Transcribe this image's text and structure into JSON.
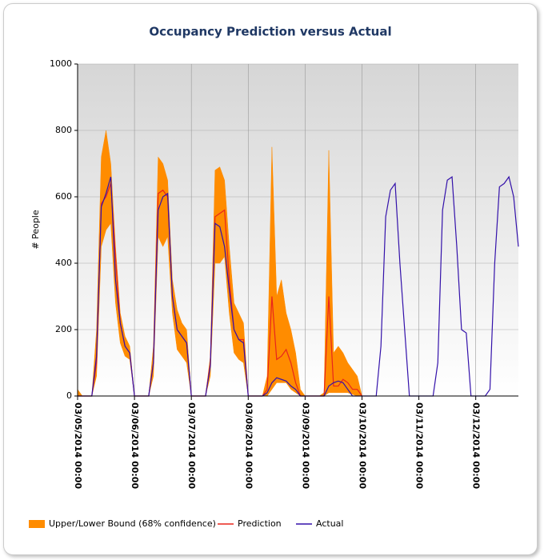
{
  "chart_data": {
    "type": "line",
    "title": "Occupancy Prediction versus Actual",
    "y_label": "# People",
    "x": [
      "03/05/2014 00:00",
      "03/05/2014 02:00",
      "03/05/2014 04:00",
      "03/05/2014 06:00",
      "03/05/2014 08:00",
      "03/05/2014 10:00",
      "03/05/2014 12:00",
      "03/05/2014 14:00",
      "03/05/2014 16:00",
      "03/05/2014 18:00",
      "03/05/2014 20:00",
      "03/05/2014 22:00",
      "03/06/2014 00:00",
      "03/06/2014 02:00",
      "03/06/2014 04:00",
      "03/06/2014 06:00",
      "03/06/2014 08:00",
      "03/06/2014 10:00",
      "03/06/2014 12:00",
      "03/06/2014 14:00",
      "03/06/2014 16:00",
      "03/06/2014 18:00",
      "03/06/2014 20:00",
      "03/06/2014 22:00",
      "03/07/2014 00:00",
      "03/07/2014 02:00",
      "03/07/2014 04:00",
      "03/07/2014 06:00",
      "03/07/2014 08:00",
      "03/07/2014 10:00",
      "03/07/2014 12:00",
      "03/07/2014 14:00",
      "03/07/2014 16:00",
      "03/07/2014 18:00",
      "03/07/2014 20:00",
      "03/07/2014 22:00",
      "03/08/2014 00:00",
      "03/08/2014 02:00",
      "03/08/2014 04:00",
      "03/08/2014 06:00",
      "03/08/2014 08:00",
      "03/08/2014 10:00",
      "03/08/2014 12:00",
      "03/08/2014 14:00",
      "03/08/2014 16:00",
      "03/08/2014 18:00",
      "03/08/2014 20:00",
      "03/08/2014 22:00",
      "03/09/2014 00:00",
      "03/09/2014 02:00",
      "03/09/2014 04:00",
      "03/09/2014 06:00",
      "03/09/2014 08:00",
      "03/09/2014 10:00",
      "03/09/2014 12:00",
      "03/09/2014 14:00",
      "03/09/2014 16:00",
      "03/09/2014 18:00",
      "03/09/2014 20:00",
      "03/09/2014 22:00",
      "03/10/2014 00:00",
      "03/10/2014 02:00",
      "03/10/2014 04:00",
      "03/10/2014 06:00",
      "03/10/2014 08:00",
      "03/10/2014 10:00",
      "03/10/2014 12:00",
      "03/10/2014 14:00",
      "03/10/2014 16:00",
      "03/10/2014 18:00",
      "03/10/2014 20:00",
      "03/10/2014 22:00",
      "03/11/2014 00:00",
      "03/11/2014 02:00",
      "03/11/2014 04:00",
      "03/11/2014 06:00",
      "03/11/2014 08:00",
      "03/11/2014 10:00",
      "03/11/2014 12:00",
      "03/11/2014 14:00",
      "03/11/2014 16:00",
      "03/11/2014 18:00",
      "03/11/2014 20:00",
      "03/11/2014 22:00",
      "03/12/2014 00:00",
      "03/12/2014 02:00",
      "03/12/2014 04:00",
      "03/12/2014 06:00",
      "03/12/2014 08:00",
      "03/12/2014 10:00",
      "03/12/2014 12:00",
      "03/12/2014 14:00",
      "03/12/2014 16:00",
      "03/12/2014 18:00"
    ],
    "xlim": [
      "03/05/2014 00:00",
      "03/12/2014 18:00"
    ],
    "xticks": [
      "03/05/2014 00:00",
      "03/06/2014 00:00",
      "03/07/2014 00:00",
      "03/08/2014 00:00",
      "03/09/2014 00:00",
      "03/10/2014 00:00",
      "03/11/2014 00:00",
      "03/12/2014 00:00"
    ],
    "ylim": [
      0,
      1000
    ],
    "yticks": [
      0,
      200,
      400,
      600,
      800,
      1000
    ],
    "grid": true,
    "series": [
      {
        "name": "Upper/Lower Bound (68% confidence)",
        "color": "#ff8c00",
        "upper": [
          20,
          0,
          0,
          0,
          200,
          720,
          800,
          700,
          450,
          250,
          180,
          150,
          0,
          0,
          0,
          0,
          150,
          720,
          700,
          650,
          350,
          260,
          220,
          200,
          0,
          0,
          0,
          0,
          120,
          680,
          690,
          650,
          450,
          280,
          250,
          220,
          0,
          0,
          0,
          0,
          60,
          750,
          300,
          350,
          250,
          200,
          130,
          20,
          0,
          0,
          0,
          0,
          10,
          740,
          130,
          150,
          130,
          100,
          80,
          60,
          0,
          null,
          null,
          null,
          null,
          null,
          null,
          null,
          null,
          null,
          null,
          null,
          null,
          null,
          null,
          null,
          null,
          null,
          null,
          null,
          null,
          null,
          null,
          null,
          null,
          null,
          null,
          null,
          null,
          null,
          null,
          null,
          null,
          null
        ],
        "lower": [
          0,
          0,
          0,
          0,
          60,
          450,
          500,
          520,
          280,
          160,
          120,
          110,
          0,
          0,
          0,
          0,
          60,
          480,
          450,
          480,
          250,
          140,
          120,
          100,
          0,
          0,
          0,
          0,
          60,
          400,
          400,
          420,
          250,
          130,
          110,
          100,
          0,
          0,
          0,
          0,
          0,
          20,
          40,
          40,
          40,
          20,
          10,
          0,
          0,
          0,
          0,
          0,
          0,
          10,
          10,
          10,
          10,
          10,
          5,
          0,
          0,
          null,
          null,
          null,
          null,
          null,
          null,
          null,
          null,
          null,
          null,
          null,
          null,
          null,
          null,
          null,
          null,
          null,
          null,
          null,
          null,
          null,
          null,
          null,
          null,
          null,
          null,
          null,
          null,
          null,
          null,
          null,
          null,
          null
        ]
      },
      {
        "name": "Prediction",
        "color": "#e8251c",
        "values": [
          0,
          0,
          0,
          0,
          100,
          580,
          600,
          640,
          420,
          220,
          150,
          130,
          0,
          0,
          0,
          0,
          100,
          610,
          620,
          600,
          300,
          200,
          180,
          160,
          0,
          0,
          0,
          0,
          100,
          540,
          550,
          560,
          350,
          200,
          170,
          170,
          0,
          0,
          0,
          0,
          20,
          300,
          110,
          120,
          140,
          100,
          40,
          0,
          0,
          0,
          0,
          0,
          0,
          300,
          30,
          30,
          50,
          40,
          20,
          20,
          0,
          null,
          null,
          null,
          null,
          null,
          null,
          null,
          null,
          null,
          null,
          null,
          null,
          null,
          null,
          null,
          null,
          null,
          null,
          null,
          null,
          null,
          null,
          null,
          null,
          null,
          null,
          null,
          null,
          null,
          null,
          null,
          null,
          null
        ]
      },
      {
        "name": "Actual",
        "color": "#3311aa",
        "values": [
          0,
          0,
          0,
          0,
          120,
          570,
          610,
          660,
          350,
          220,
          150,
          130,
          0,
          0,
          0,
          0,
          100,
          560,
          600,
          610,
          300,
          200,
          180,
          160,
          0,
          0,
          0,
          0,
          90,
          520,
          510,
          450,
          320,
          200,
          170,
          160,
          0,
          0,
          0,
          0,
          10,
          40,
          55,
          50,
          45,
          30,
          20,
          0,
          0,
          0,
          0,
          0,
          0,
          30,
          40,
          45,
          40,
          20,
          0,
          0,
          0,
          0,
          0,
          0,
          150,
          540,
          620,
          640,
          400,
          200,
          0,
          0,
          0,
          0,
          0,
          0,
          100,
          560,
          650,
          660,
          450,
          200,
          190,
          0,
          0,
          0,
          0,
          20,
          400,
          630,
          640,
          660,
          600,
          450
        ]
      }
    ]
  }
}
